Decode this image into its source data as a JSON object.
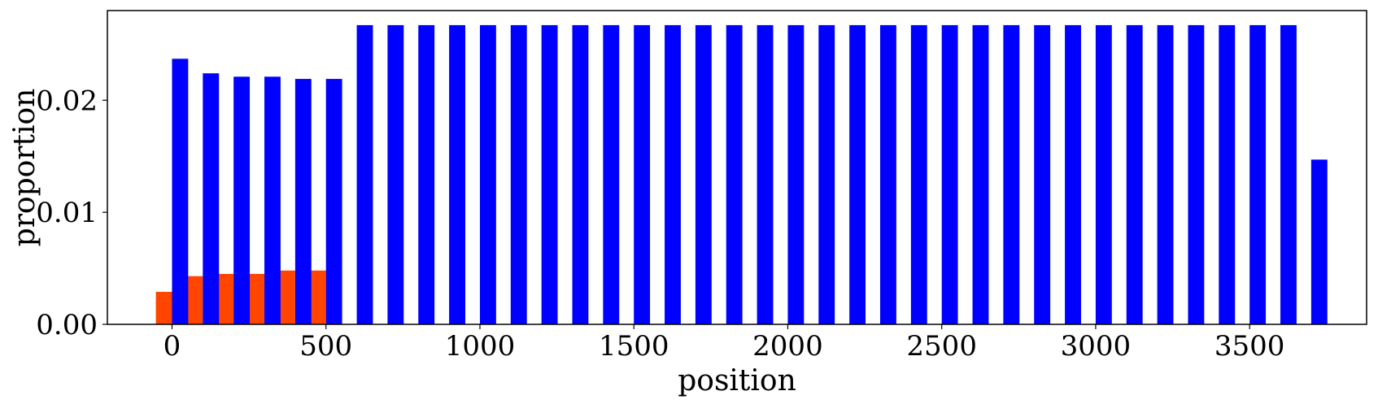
{
  "chart_data": {
    "type": "bar",
    "xlabel": "position",
    "ylabel": "proportion",
    "xlim": [
      -210,
      3880
    ],
    "ylim": [
      0.0,
      0.028
    ],
    "grid": false,
    "bin_width": 100,
    "x_ticks": [
      {
        "value": 0,
        "label": "0"
      },
      {
        "value": 500,
        "label": "500"
      },
      {
        "value": 1000,
        "label": "1000"
      },
      {
        "value": 1500,
        "label": "1500"
      },
      {
        "value": 2000,
        "label": "2000"
      },
      {
        "value": 2500,
        "label": "2500"
      },
      {
        "value": 3000,
        "label": "3000"
      },
      {
        "value": 3500,
        "label": "3500"
      }
    ],
    "y_ticks": [
      {
        "value": 0.0,
        "label": "0.00"
      },
      {
        "value": 0.01,
        "label": "0.01"
      },
      {
        "value": 0.02,
        "label": "0.02"
      }
    ],
    "series": [
      {
        "color": "#ff4500",
        "x": [
          0,
          100,
          200,
          300,
          400,
          500
        ],
        "values": [
          0.0029,
          0.0043,
          0.0045,
          0.0045,
          0.0048,
          0.0048
        ]
      },
      {
        "color": "#0000ff",
        "x": [
          0,
          100,
          200,
          300,
          400,
          500,
          600,
          700,
          800,
          900,
          1000,
          1100,
          1200,
          1300,
          1400,
          1500,
          1600,
          1700,
          1800,
          1900,
          2000,
          2100,
          2200,
          2300,
          2400,
          2500,
          2600,
          2700,
          2800,
          2900,
          3000,
          3100,
          3200,
          3300,
          3400,
          3500,
          3600,
          3700
        ],
        "values": [
          0.0237,
          0.0224,
          0.0221,
          0.0221,
          0.0219,
          0.0219,
          0.0267,
          0.0267,
          0.0267,
          0.0267,
          0.0267,
          0.0267,
          0.0267,
          0.0267,
          0.0267,
          0.0267,
          0.0267,
          0.0267,
          0.0267,
          0.0267,
          0.0267,
          0.0267,
          0.0267,
          0.0267,
          0.0267,
          0.0267,
          0.0267,
          0.0267,
          0.0267,
          0.0267,
          0.0267,
          0.0267,
          0.0267,
          0.0267,
          0.0267,
          0.0267,
          0.0267,
          0.0147
        ]
      }
    ]
  }
}
